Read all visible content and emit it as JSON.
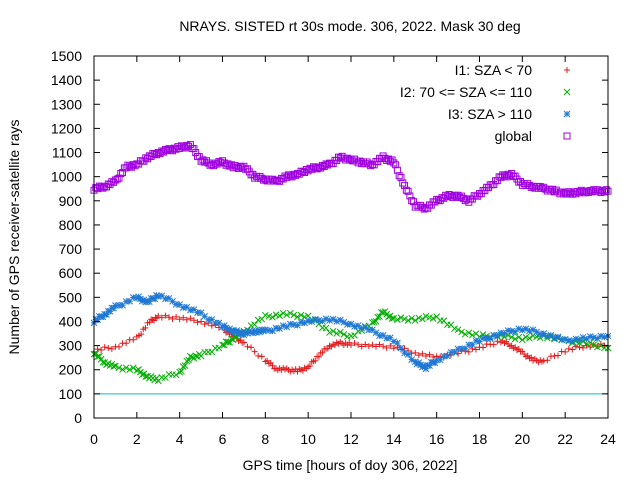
{
  "chart_data": {
    "type": "scatter",
    "title": "NRAYS. SISTED rt 30s mode. 306, 2022. Mask 30 deg",
    "xlabel": "GPS time [hours of doy 306, 2022]",
    "ylabel": "Number of GPS receiver-satellite rays",
    "xlim": [
      0,
      24
    ],
    "ylim": [
      0,
      1500
    ],
    "xticks": [
      0,
      2,
      4,
      6,
      8,
      10,
      12,
      14,
      16,
      18,
      20,
      22,
      24
    ],
    "yticks": [
      0,
      100,
      200,
      300,
      400,
      500,
      600,
      700,
      800,
      900,
      1000,
      1100,
      1200,
      1300,
      1400,
      1500
    ],
    "grid": false,
    "legend_position": "top-right",
    "threshold_line": {
      "y": 100,
      "color": "#00c0c0"
    },
    "series": [
      {
        "name": "I1: SZA < 70",
        "marker": "plus",
        "color": "#e41a1c",
        "x": [
          0,
          1,
          2,
          2.6,
          3,
          4,
          5,
          6,
          6.5,
          7,
          8,
          8.5,
          9,
          9.5,
          10,
          10.5,
          11,
          11.5,
          12,
          13,
          14,
          15,
          16,
          17,
          18,
          19,
          19.5,
          20,
          20.5,
          21,
          22,
          23,
          24
        ],
        "values": [
          280,
          295,
          330,
          400,
          420,
          415,
          400,
          370,
          340,
          310,
          240,
          205,
          200,
          195,
          210,
          260,
          300,
          310,
          305,
          300,
          295,
          270,
          250,
          270,
          290,
          320,
          300,
          270,
          240,
          235,
          280,
          300,
          300
        ]
      },
      {
        "name": "I2: 70 <= SZA <= 110",
        "marker": "cross",
        "color": "#00b000",
        "x": [
          0,
          0.5,
          1,
          2,
          2.5,
          3,
          4,
          4.5,
          5,
          6,
          6.5,
          7,
          8,
          9,
          10,
          11,
          12,
          13,
          13.5,
          14,
          15,
          16,
          17,
          18,
          19,
          20,
          21,
          22,
          23,
          24
        ],
        "values": [
          270,
          230,
          210,
          200,
          170,
          160,
          190,
          250,
          260,
          300,
          330,
          360,
          420,
          430,
          420,
          360,
          340,
          390,
          440,
          410,
          410,
          420,
          360,
          340,
          340,
          330,
          340,
          320,
          310,
          290
        ]
      },
      {
        "name": "I3: SZA > 110",
        "marker": "star",
        "color": "#1f78d4",
        "x": [
          0,
          0.5,
          1,
          2,
          2.5,
          3,
          4,
          5,
          6,
          6.5,
          7,
          7.5,
          8,
          9,
          10,
          11,
          12,
          13,
          14,
          15,
          15.5,
          16,
          17,
          18,
          19,
          20,
          21,
          22,
          23,
          24
        ],
        "values": [
          400,
          430,
          460,
          500,
          480,
          510,
          470,
          430,
          380,
          360,
          350,
          360,
          360,
          380,
          400,
          410,
          390,
          360,
          320,
          230,
          210,
          240,
          280,
          320,
          350,
          370,
          350,
          320,
          330,
          340
        ]
      },
      {
        "name": "global",
        "marker": "open-square",
        "color": "#a000e0",
        "x": [
          0,
          0.5,
          1,
          1.5,
          2,
          2.5,
          3,
          3.5,
          4,
          4.5,
          5,
          5.5,
          6,
          6.5,
          7,
          7.5,
          8,
          8.5,
          9,
          9.5,
          10,
          10.5,
          11,
          11.5,
          12,
          12.5,
          13,
          13.5,
          14,
          14.5,
          15,
          15.5,
          16,
          16.5,
          17,
          17.5,
          18,
          18.5,
          19,
          19.5,
          20,
          20.5,
          21,
          21.5,
          22,
          22.5,
          23,
          23.5,
          24
        ],
        "values": [
          950,
          960,
          980,
          1040,
          1050,
          1080,
          1100,
          1110,
          1120,
          1130,
          1070,
          1050,
          1060,
          1040,
          1040,
          1000,
          990,
          980,
          1000,
          1010,
          1030,
          1040,
          1050,
          1080,
          1070,
          1060,
          1050,
          1080,
          1060,
          960,
          880,
          870,
          900,
          920,
          920,
          900,
          930,
          960,
          1000,
          1010,
          970,
          960,
          950,
          940,
          930,
          935,
          940,
          940,
          940
        ]
      }
    ]
  }
}
